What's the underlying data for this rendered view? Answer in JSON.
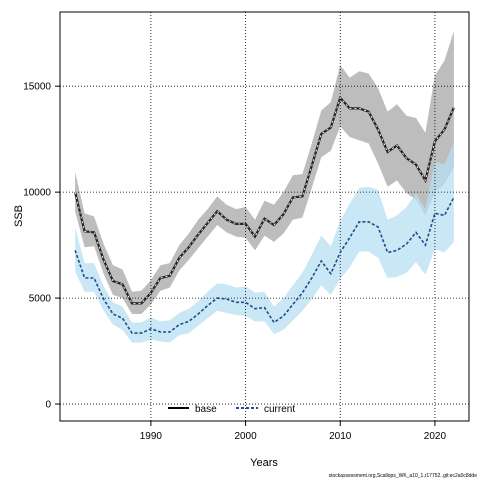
{
  "chart_data": {
    "type": "line",
    "title": "",
    "xlabel": "Years",
    "ylabel": "SSB",
    "xlim": [
      1980.4,
      2023.6
    ],
    "ylim": [
      -800,
      18500
    ],
    "x_ticks": [
      1990,
      2000,
      2010,
      2020
    ],
    "x_tick_labels": [
      "1990",
      "2000",
      "2010",
      "2020"
    ],
    "y_ticks": [
      0,
      5000,
      10000,
      15000
    ],
    "y_tick_labels": [
      "0",
      "5000",
      "10000",
      "15000"
    ],
    "grid": true,
    "legend_position": "bottom",
    "footnote": "stockassessment.org,Scallops_WK_a10_1,r17752..git:ec2a0c8dde",
    "x": [
      1982,
      1983,
      1984,
      1985,
      1986,
      1987,
      1988,
      1989,
      1990,
      1991,
      1992,
      1993,
      1994,
      1995,
      1996,
      1997,
      1998,
      1999,
      2000,
      2001,
      2002,
      2003,
      2004,
      2005,
      2006,
      2007,
      2008,
      2009,
      2010,
      2011,
      2012,
      2013,
      2014,
      2015,
      2016,
      2017,
      2018,
      2019,
      2020,
      2021,
      2022
    ],
    "series": [
      {
        "name": "base",
        "color": "#222222",
        "band_color": "#b9b9b9",
        "values": [
          10000,
          8150,
          8100,
          6800,
          5800,
          5650,
          4750,
          4750,
          5250,
          5950,
          6050,
          6900,
          7400,
          8000,
          8550,
          9100,
          8700,
          8500,
          8500,
          7900,
          8750,
          8450,
          8950,
          9750,
          9800,
          11250,
          12750,
          13050,
          14450,
          13950,
          13950,
          13800,
          12950,
          11900,
          12200,
          11600,
          11300,
          10550,
          12400,
          12950,
          14000
        ],
        "upper": [
          10950,
          9000,
          8850,
          7550,
          6550,
          6350,
          5300,
          5350,
          5850,
          6550,
          6650,
          7500,
          8050,
          8700,
          9200,
          9800,
          9400,
          9200,
          9300,
          8700,
          9600,
          9400,
          10000,
          10800,
          10850,
          12300,
          13850,
          14250,
          16000,
          15400,
          15700,
          15600,
          14900,
          13800,
          14150,
          13600,
          13500,
          12800,
          15500,
          16200,
          17600
        ],
        "lower": [
          9100,
          7400,
          7450,
          6150,
          5150,
          5000,
          4250,
          4250,
          4700,
          5350,
          5500,
          6300,
          6800,
          7350,
          7900,
          8450,
          8100,
          7900,
          7850,
          7250,
          7950,
          7650,
          8050,
          8700,
          8800,
          10200,
          11650,
          11950,
          13100,
          12600,
          12450,
          12300,
          11350,
          10250,
          10550,
          9950,
          9650,
          8900,
          10000,
          10400,
          11150
        ]
      },
      {
        "name": "current",
        "color": "#1a4f8b",
        "band_color": "#b8dff3",
        "values": [
          7250,
          5950,
          5950,
          4950,
          4250,
          4050,
          3350,
          3350,
          3550,
          3400,
          3400,
          3750,
          3900,
          4250,
          4650,
          5000,
          4950,
          4800,
          4800,
          4500,
          4550,
          3850,
          4150,
          4700,
          5250,
          5950,
          6750,
          6150,
          7150,
          7850,
          8600,
          8600,
          8350,
          7150,
          7250,
          7550,
          8100,
          7500,
          9000,
          8900,
          9750
        ]
      },
      {
        "name": "current_upper",
        "values": [
          8350,
          6650,
          6650,
          5550,
          4800,
          4600,
          3850,
          3850,
          4100,
          3900,
          3950,
          4300,
          4500,
          4850,
          5300,
          5700,
          5650,
          5500,
          5550,
          5250,
          5300,
          4600,
          5000,
          5600,
          6200,
          7050,
          7950,
          7450,
          8650,
          9450,
          10200,
          10250,
          10100,
          8700,
          8900,
          9300,
          9950,
          9200,
          11450,
          11300,
          12350
        ]
      },
      {
        "name": "current_lower",
        "values": [
          6250,
          5300,
          5300,
          4400,
          3750,
          3500,
          2900,
          2900,
          3050,
          2950,
          2900,
          3250,
          3350,
          3700,
          4050,
          4400,
          4300,
          4200,
          4150,
          3900,
          3900,
          3300,
          3500,
          3950,
          4400,
          4950,
          5600,
          5150,
          5900,
          6450,
          7200,
          7200,
          6900,
          5950,
          6000,
          6200,
          6700,
          6100,
          7300,
          7150,
          7650
        ]
      }
    ]
  }
}
